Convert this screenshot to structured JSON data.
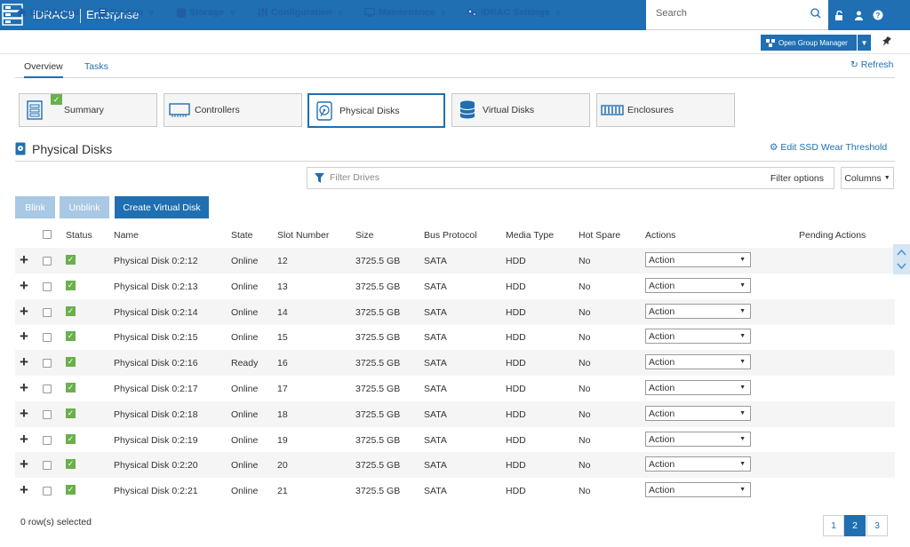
{
  "header": {
    "brand": "iDRAC9",
    "edition": "Enterprise",
    "search_placeholder": "Search"
  },
  "nav": {
    "items": [
      "Dashboard",
      "System",
      "Storage",
      "Configuration",
      "Maintenance",
      "iDRAC Settings"
    ],
    "open_group_manager": "Open Group Manager"
  },
  "tabs": {
    "overview": "Overview",
    "tasks": "Tasks",
    "refresh": "Refresh"
  },
  "cards": [
    "Summary",
    "Controllers",
    "Physical Disks",
    "Virtual Disks",
    "Enclosures"
  ],
  "section": {
    "title": "Physical Disks",
    "edit_ssd": "Edit SSD Wear Threshold"
  },
  "filter": {
    "placeholder": "Filter Drives",
    "options": "Filter options",
    "columns": "Columns"
  },
  "buttons": {
    "blink": "Blink",
    "unblink": "Unblink",
    "create_vd": "Create Virtual Disk"
  },
  "table": {
    "headers": [
      "Status",
      "Name",
      "State",
      "Slot Number",
      "Size",
      "Bus Protocol",
      "Media Type",
      "Hot Spare",
      "Actions",
      "Pending Actions"
    ],
    "rows": [
      {
        "name": "Physical Disk 0:2:12",
        "state": "Online",
        "slot": "12",
        "size": "3725.5 GB",
        "bus": "SATA",
        "media": "HDD",
        "hot_spare": "No",
        "action": "Action"
      },
      {
        "name": "Physical Disk 0:2:13",
        "state": "Online",
        "slot": "13",
        "size": "3725.5 GB",
        "bus": "SATA",
        "media": "HDD",
        "hot_spare": "No",
        "action": "Action"
      },
      {
        "name": "Physical Disk 0:2:14",
        "state": "Online",
        "slot": "14",
        "size": "3725.5 GB",
        "bus": "SATA",
        "media": "HDD",
        "hot_spare": "No",
        "action": "Action"
      },
      {
        "name": "Physical Disk 0:2:15",
        "state": "Online",
        "slot": "15",
        "size": "3725.5 GB",
        "bus": "SATA",
        "media": "HDD",
        "hot_spare": "No",
        "action": "Action"
      },
      {
        "name": "Physical Disk 0:2:16",
        "state": "Ready",
        "slot": "16",
        "size": "3725.5 GB",
        "bus": "SATA",
        "media": "HDD",
        "hot_spare": "No",
        "action": "Action"
      },
      {
        "name": "Physical Disk 0:2:17",
        "state": "Online",
        "slot": "17",
        "size": "3725.5 GB",
        "bus": "SATA",
        "media": "HDD",
        "hot_spare": "No",
        "action": "Action"
      },
      {
        "name": "Physical Disk 0:2:18",
        "state": "Online",
        "slot": "18",
        "size": "3725.5 GB",
        "bus": "SATA",
        "media": "HDD",
        "hot_spare": "No",
        "action": "Action"
      },
      {
        "name": "Physical Disk 0:2:19",
        "state": "Online",
        "slot": "19",
        "size": "3725.5 GB",
        "bus": "SATA",
        "media": "HDD",
        "hot_spare": "No",
        "action": "Action"
      },
      {
        "name": "Physical Disk 0:2:20",
        "state": "Online",
        "slot": "20",
        "size": "3725.5 GB",
        "bus": "SATA",
        "media": "HDD",
        "hot_spare": "No",
        "action": "Action"
      },
      {
        "name": "Physical Disk 0:2:21",
        "state": "Online",
        "slot": "21",
        "size": "3725.5 GB",
        "bus": "SATA",
        "media": "HDD",
        "hot_spare": "No",
        "action": "Action"
      }
    ]
  },
  "footer": {
    "selected": "0 row(s) selected",
    "pages": [
      "1",
      "2",
      "3"
    ],
    "current_page": "2"
  },
  "colors": {
    "brand_blue": "#1f6fb2",
    "ok_green": "#6ab04c",
    "disabled_blue": "#a8c8e3"
  }
}
